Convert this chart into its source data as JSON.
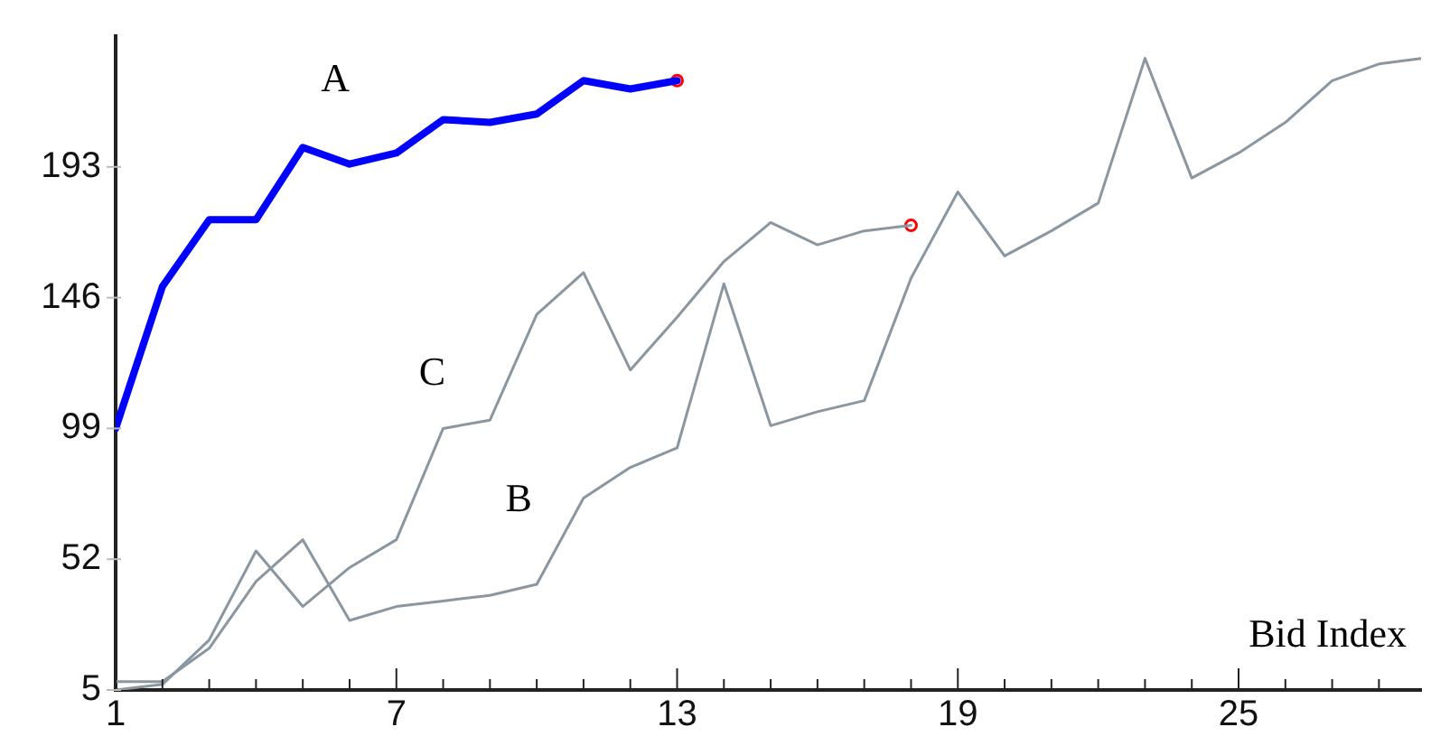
{
  "chart_data": {
    "type": "line",
    "xlabel": "Bid Index",
    "xlim": [
      1,
      28.9
    ],
    "ylim": [
      5,
      240
    ],
    "xticks": [
      1,
      {
        "value": 2,
        "label": null
      },
      {
        "value": 3,
        "label": null
      },
      {
        "value": 4,
        "label": null
      },
      {
        "value": 5,
        "label": null
      },
      {
        "value": 6,
        "label": null
      },
      7,
      {
        "value": 8,
        "label": null
      },
      {
        "value": 9,
        "label": null
      },
      {
        "value": 10,
        "label": null
      },
      {
        "value": 11,
        "label": null
      },
      {
        "value": 12,
        "label": null
      },
      13,
      {
        "value": 14,
        "label": null
      },
      {
        "value": 15,
        "label": null
      },
      {
        "value": 16,
        "label": null
      },
      {
        "value": 17,
        "label": null
      },
      {
        "value": 18,
        "label": null
      },
      19,
      {
        "value": 20,
        "label": null
      },
      {
        "value": 21,
        "label": null
      },
      {
        "value": 22,
        "label": null
      },
      {
        "value": 23,
        "label": null
      },
      {
        "value": 24,
        "label": null
      },
      25,
      {
        "value": 26,
        "label": null
      },
      {
        "value": 27,
        "label": null
      },
      {
        "value": 28,
        "label": null
      }
    ],
    "yticks": [
      5,
      52,
      99,
      146,
      193
    ],
    "grid": false,
    "legend": false,
    "marker": "none",
    "line_style": "solid",
    "series": [
      {
        "name": "A",
        "color": "#0000ff",
        "x": [
          1,
          2,
          3,
          4,
          5,
          6,
          7,
          8,
          9,
          10,
          11,
          12,
          13
        ],
        "values": [
          99,
          150,
          174,
          174,
          200,
          194,
          198,
          210,
          209,
          212,
          224,
          221,
          224
        ]
      },
      {
        "name": "B",
        "color": "#8a96a0",
        "x": [
          1,
          2,
          3,
          4,
          5,
          6,
          7,
          8,
          9,
          10,
          11,
          12,
          13,
          14,
          15,
          16,
          17,
          18,
          19,
          20,
          21,
          22,
          23,
          24,
          25,
          26,
          27,
          28,
          28.9
        ],
        "values": [
          8,
          8,
          20,
          44,
          59,
          30,
          35,
          37,
          39,
          43,
          74,
          85,
          92,
          151,
          100,
          105,
          109,
          153,
          184,
          161,
          170,
          180,
          232,
          189,
          198,
          209,
          224,
          230,
          232
        ]
      },
      {
        "name": "C",
        "color": "#8a96a0",
        "x": [
          1,
          2,
          3,
          4,
          5,
          6,
          7,
          8,
          9,
          10,
          11,
          12,
          13,
          14,
          15,
          16,
          17,
          18
        ],
        "values": [
          5,
          7,
          23,
          55,
          35,
          49,
          59,
          99,
          102,
          140,
          155,
          120,
          139,
          159,
          173,
          165,
          170,
          172
        ]
      },
      {
        "type": "scatter",
        "color": "#ff0000",
        "marker": "circle",
        "x": [
          13,
          18
        ],
        "values": [
          224,
          172
        ]
      }
    ]
  }
}
